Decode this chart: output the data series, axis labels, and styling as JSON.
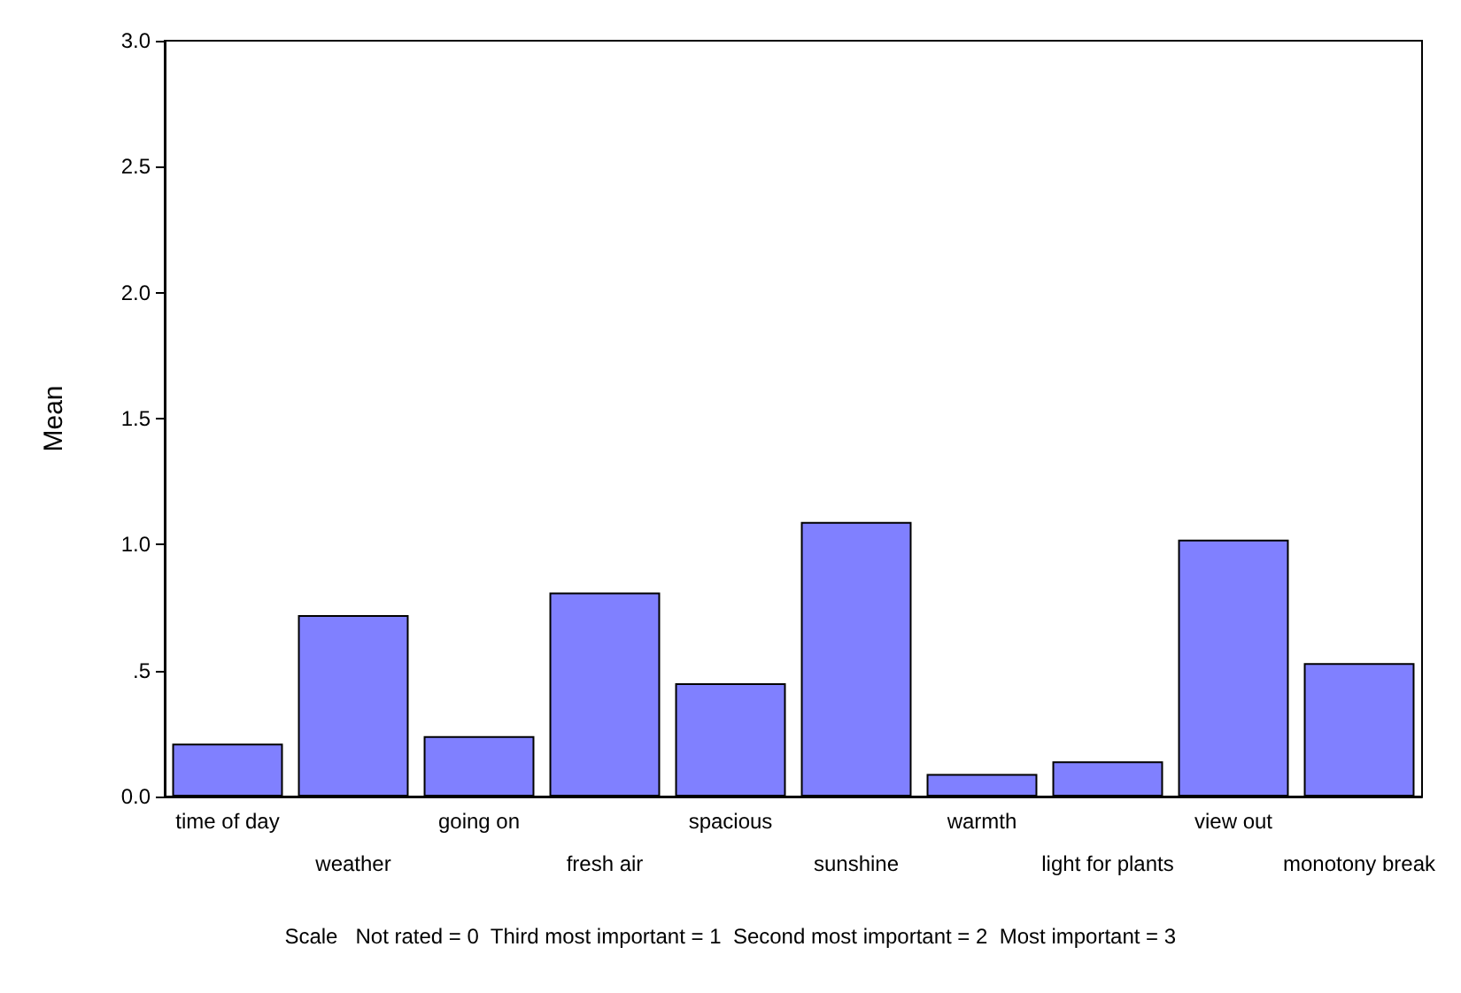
{
  "chart_data": {
    "type": "bar",
    "ylabel": "Mean",
    "categories": [
      "time of day",
      "weather",
      "going on",
      "fresh air",
      "spacious",
      "sunshine",
      "warmth",
      "light for plants",
      "view out",
      "monotony break"
    ],
    "values": [
      0.21,
      0.72,
      0.24,
      0.81,
      0.45,
      1.09,
      0.09,
      0.14,
      1.02,
      0.53
    ],
    "color": "#8080ff",
    "ylim": [
      0,
      3
    ],
    "yticks": [
      {
        "value": 0,
        "label": "0.0"
      },
      {
        "value": 0.5,
        "label": ".5"
      },
      {
        "value": 1,
        "label": "1.0"
      },
      {
        "value": 1.5,
        "label": "1.5"
      },
      {
        "value": 2,
        "label": "2.0"
      },
      {
        "value": 2.5,
        "label": "2.5"
      },
      {
        "value": 3,
        "label": "3.0"
      }
    ],
    "grid": false,
    "annotations": [
      "Scale   Not rated = 0  Third most important = 1  Second most important = 2  Most important = 3"
    ]
  }
}
